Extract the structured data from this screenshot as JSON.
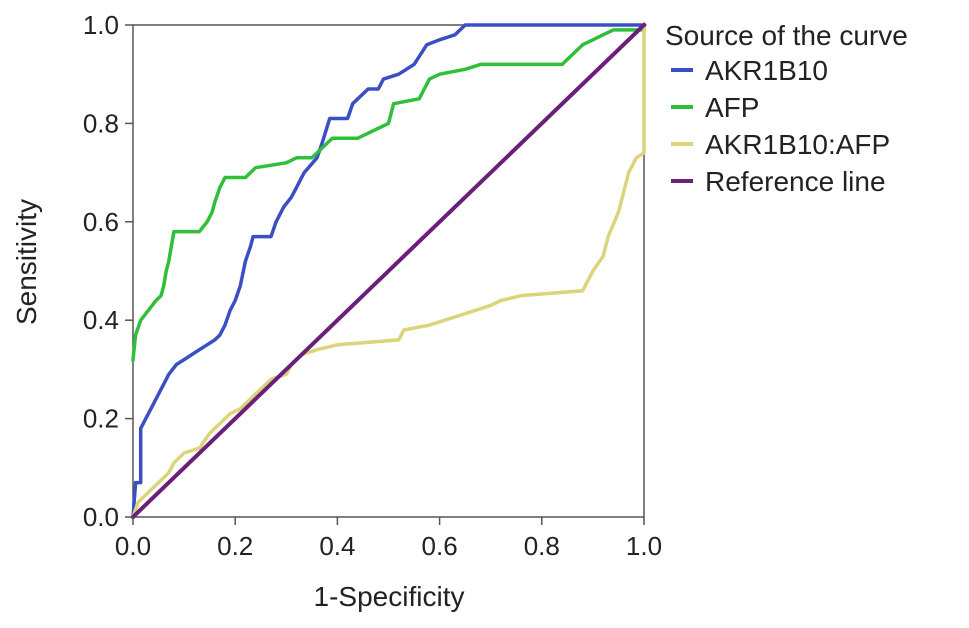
{
  "chart_data": {
    "type": "line",
    "title": "",
    "xlabel": "1-Specificity",
    "ylabel": "Sensitivity",
    "xlim": [
      0,
      1
    ],
    "ylim": [
      0,
      1
    ],
    "x_ticks": [
      "0.0",
      "0.2",
      "0.4",
      "0.6",
      "0.8",
      "1.0"
    ],
    "y_ticks": [
      "0.0",
      "0.2",
      "0.4",
      "0.6",
      "0.8",
      "1.0"
    ],
    "grid": false,
    "legend": {
      "title": "Source of the curve",
      "placement": "outside-right"
    },
    "series": [
      {
        "name": "AKR1B10",
        "color": "#3a4fc4",
        "points": [
          [
            0,
            0
          ],
          [
            0.005,
            0.07
          ],
          [
            0.015,
            0.07
          ],
          [
            0.015,
            0.18
          ],
          [
            0.025,
            0.2
          ],
          [
            0.035,
            0.22
          ],
          [
            0.05,
            0.25
          ],
          [
            0.06,
            0.27
          ],
          [
            0.07,
            0.29
          ],
          [
            0.085,
            0.31
          ],
          [
            0.1,
            0.32
          ],
          [
            0.115,
            0.33
          ],
          [
            0.13,
            0.34
          ],
          [
            0.145,
            0.35
          ],
          [
            0.16,
            0.36
          ],
          [
            0.17,
            0.37
          ],
          [
            0.18,
            0.39
          ],
          [
            0.19,
            0.42
          ],
          [
            0.2,
            0.44
          ],
          [
            0.21,
            0.47
          ],
          [
            0.22,
            0.52
          ],
          [
            0.23,
            0.55
          ],
          [
            0.235,
            0.57
          ],
          [
            0.27,
            0.57
          ],
          [
            0.28,
            0.6
          ],
          [
            0.295,
            0.63
          ],
          [
            0.31,
            0.65
          ],
          [
            0.32,
            0.67
          ],
          [
            0.335,
            0.7
          ],
          [
            0.36,
            0.73
          ],
          [
            0.37,
            0.76
          ],
          [
            0.385,
            0.81
          ],
          [
            0.42,
            0.81
          ],
          [
            0.43,
            0.84
          ],
          [
            0.46,
            0.87
          ],
          [
            0.48,
            0.87
          ],
          [
            0.49,
            0.89
          ],
          [
            0.52,
            0.9
          ],
          [
            0.55,
            0.92
          ],
          [
            0.575,
            0.96
          ],
          [
            0.6,
            0.97
          ],
          [
            0.63,
            0.98
          ],
          [
            0.65,
            1.0
          ],
          [
            1.0,
            1.0
          ]
        ]
      },
      {
        "name": "AFP",
        "color": "#2fbf3a",
        "points": [
          [
            0,
            0.32
          ],
          [
            0.005,
            0.37
          ],
          [
            0.015,
            0.4
          ],
          [
            0.03,
            0.42
          ],
          [
            0.045,
            0.44
          ],
          [
            0.055,
            0.45
          ],
          [
            0.06,
            0.47
          ],
          [
            0.065,
            0.5
          ],
          [
            0.07,
            0.52
          ],
          [
            0.075,
            0.55
          ],
          [
            0.08,
            0.58
          ],
          [
            0.13,
            0.58
          ],
          [
            0.145,
            0.6
          ],
          [
            0.155,
            0.62
          ],
          [
            0.16,
            0.64
          ],
          [
            0.17,
            0.67
          ],
          [
            0.18,
            0.69
          ],
          [
            0.22,
            0.69
          ],
          [
            0.24,
            0.71
          ],
          [
            0.3,
            0.72
          ],
          [
            0.32,
            0.73
          ],
          [
            0.35,
            0.73
          ],
          [
            0.37,
            0.75
          ],
          [
            0.39,
            0.77
          ],
          [
            0.44,
            0.77
          ],
          [
            0.46,
            0.78
          ],
          [
            0.48,
            0.79
          ],
          [
            0.5,
            0.8
          ],
          [
            0.51,
            0.84
          ],
          [
            0.56,
            0.85
          ],
          [
            0.57,
            0.87
          ],
          [
            0.58,
            0.89
          ],
          [
            0.6,
            0.9
          ],
          [
            0.65,
            0.91
          ],
          [
            0.68,
            0.92
          ],
          [
            0.84,
            0.92
          ],
          [
            0.86,
            0.94
          ],
          [
            0.88,
            0.96
          ],
          [
            0.9,
            0.97
          ],
          [
            0.92,
            0.98
          ],
          [
            0.94,
            0.99
          ],
          [
            1.0,
            0.99
          ],
          [
            1.0,
            1.0
          ]
        ]
      },
      {
        "name": "AKR1B10:AFP",
        "color": "#dcd47a",
        "points": [
          [
            0,
            0
          ],
          [
            0.01,
            0.03
          ],
          [
            0.03,
            0.05
          ],
          [
            0.05,
            0.07
          ],
          [
            0.07,
            0.09
          ],
          [
            0.08,
            0.11
          ],
          [
            0.1,
            0.13
          ],
          [
            0.13,
            0.14
          ],
          [
            0.15,
            0.17
          ],
          [
            0.17,
            0.19
          ],
          [
            0.19,
            0.21
          ],
          [
            0.21,
            0.22
          ],
          [
            0.23,
            0.24
          ],
          [
            0.25,
            0.26
          ],
          [
            0.27,
            0.28
          ],
          [
            0.3,
            0.29
          ],
          [
            0.31,
            0.31
          ],
          [
            0.32,
            0.32
          ],
          [
            0.33,
            0.33
          ],
          [
            0.36,
            0.34
          ],
          [
            0.4,
            0.35
          ],
          [
            0.52,
            0.36
          ],
          [
            0.53,
            0.38
          ],
          [
            0.58,
            0.39
          ],
          [
            0.61,
            0.4
          ],
          [
            0.64,
            0.41
          ],
          [
            0.7,
            0.43
          ],
          [
            0.72,
            0.44
          ],
          [
            0.76,
            0.45
          ],
          [
            0.88,
            0.46
          ],
          [
            0.9,
            0.5
          ],
          [
            0.92,
            0.53
          ],
          [
            0.93,
            0.57
          ],
          [
            0.95,
            0.62
          ],
          [
            0.96,
            0.66
          ],
          [
            0.97,
            0.7
          ],
          [
            0.985,
            0.73
          ],
          [
            1.0,
            0.74
          ],
          [
            1.0,
            1.0
          ]
        ]
      },
      {
        "name": "Reference line",
        "color": "#6a1f7a",
        "points": [
          [
            0,
            0
          ],
          [
            1,
            1
          ]
        ]
      }
    ]
  }
}
